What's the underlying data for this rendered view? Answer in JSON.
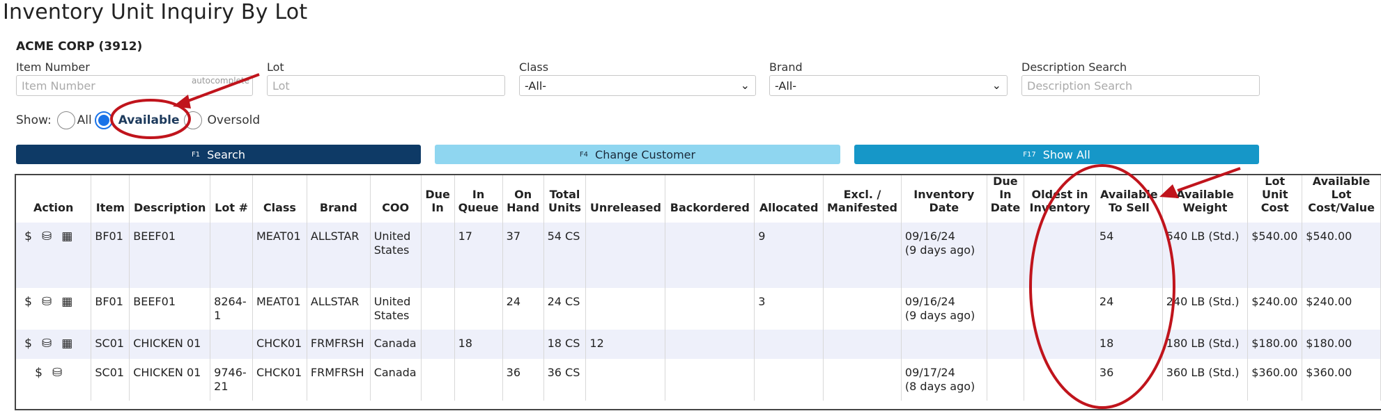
{
  "title": "Inventory Unit Inquiry By Lot",
  "customer": "ACME CORP (3912)",
  "filters": {
    "item": {
      "label": "Item Number",
      "placeholder": "Item Number",
      "hint": "autocomplete"
    },
    "lot": {
      "label": "Lot",
      "placeholder": "Lot"
    },
    "class": {
      "label": "Class",
      "value": "-All-"
    },
    "brand": {
      "label": "Brand",
      "value": "-All-"
    },
    "desc": {
      "label": "Description Search",
      "placeholder": "Description Search"
    }
  },
  "show": {
    "label": "Show:",
    "all": "All",
    "available": "Available",
    "oversold": "Oversold",
    "selected": "available"
  },
  "buttons": {
    "search": {
      "key": "F1",
      "label": "Search",
      "color": "#0e3a66"
    },
    "change": {
      "key": "F4",
      "label": "Change Customer",
      "color": "#8fd6f0"
    },
    "showall": {
      "key": "F17",
      "label": "Show All",
      "color": "#1697c8"
    }
  },
  "columns": [
    "Action",
    "Item",
    "Description",
    "Lot #",
    "Class",
    "Brand",
    "COO",
    "Due In",
    "In Queue",
    "On Hand",
    "Total Units",
    "Unreleased",
    "Backordered",
    "Allocated",
    "Excl. / Manifested",
    "Inventory Date",
    "Due In Date",
    "Oldest in Inventory",
    "Available To Sell",
    "Available Weight",
    "Lot Unit Cost",
    "Available Lot Cost/Value"
  ],
  "rows": [
    {
      "icons": [
        "dollar-icon",
        "boxes-icon",
        "calendar-icon"
      ],
      "item": "BF01",
      "desc": "BEEF01",
      "lot": "",
      "cls": "MEAT01",
      "brand": "ALLSTAR",
      "coo": "United States",
      "duein": "",
      "queue": "17",
      "onhand": "37",
      "total": "54 CS",
      "unrel": "",
      "back": "",
      "alloc": "9",
      "excl": "",
      "invdate": "09/16/24",
      "invago": "(9 days ago)",
      "dueindate": "",
      "oldest": "",
      "avail": "54",
      "weight": "540 LB (Std.)",
      "unitcost": "$540.00",
      "lotcost": "$540.00"
    },
    {
      "icons": [
        "dollar-icon",
        "boxes-icon",
        "calendar-icon"
      ],
      "item": "BF01",
      "desc": "BEEF01",
      "lot": "8264-1",
      "cls": "MEAT01",
      "brand": "ALLSTAR",
      "coo": "United States",
      "duein": "",
      "queue": "",
      "onhand": "24",
      "total": "24 CS",
      "unrel": "",
      "back": "",
      "alloc": "3",
      "excl": "",
      "invdate": "09/16/24",
      "invago": "(9 days ago)",
      "dueindate": "",
      "oldest": "",
      "avail": "24",
      "weight": "240 LB (Std.)",
      "unitcost": "$240.00",
      "lotcost": "$240.00"
    },
    {
      "icons": [
        "dollar-icon",
        "boxes-icon",
        "calendar-icon"
      ],
      "item": "SC01",
      "desc": "CHICKEN 01",
      "lot": "",
      "cls": "CHCK01",
      "brand": "FRMFRSH",
      "coo": "Canada",
      "duein": "",
      "queue": "18",
      "onhand": "",
      "total": "18 CS",
      "unrel": "12",
      "back": "",
      "alloc": "",
      "excl": "",
      "invdate": "",
      "invago": "",
      "dueindate": "",
      "oldest": "",
      "avail": "18",
      "weight": "180 LB (Std.)",
      "unitcost": "$180.00",
      "lotcost": "$180.00"
    },
    {
      "icons": [
        "dollar-icon",
        "boxes-icon"
      ],
      "item": "SC01",
      "desc": "CHICKEN 01",
      "lot": "9746-21",
      "cls": "CHCK01",
      "brand": "FRMFRSH",
      "coo": "Canada",
      "duein": "",
      "queue": "",
      "onhand": "36",
      "total": "36 CS",
      "unrel": "",
      "back": "",
      "alloc": "",
      "excl": "",
      "invdate": "09/17/24",
      "invago": "(8 days ago)",
      "dueindate": "",
      "oldest": "",
      "avail": "36",
      "weight": "360 LB (Std.)",
      "unitcost": "$360.00",
      "lotcost": "$360.00"
    }
  ],
  "annotation_color": "#c0141c"
}
